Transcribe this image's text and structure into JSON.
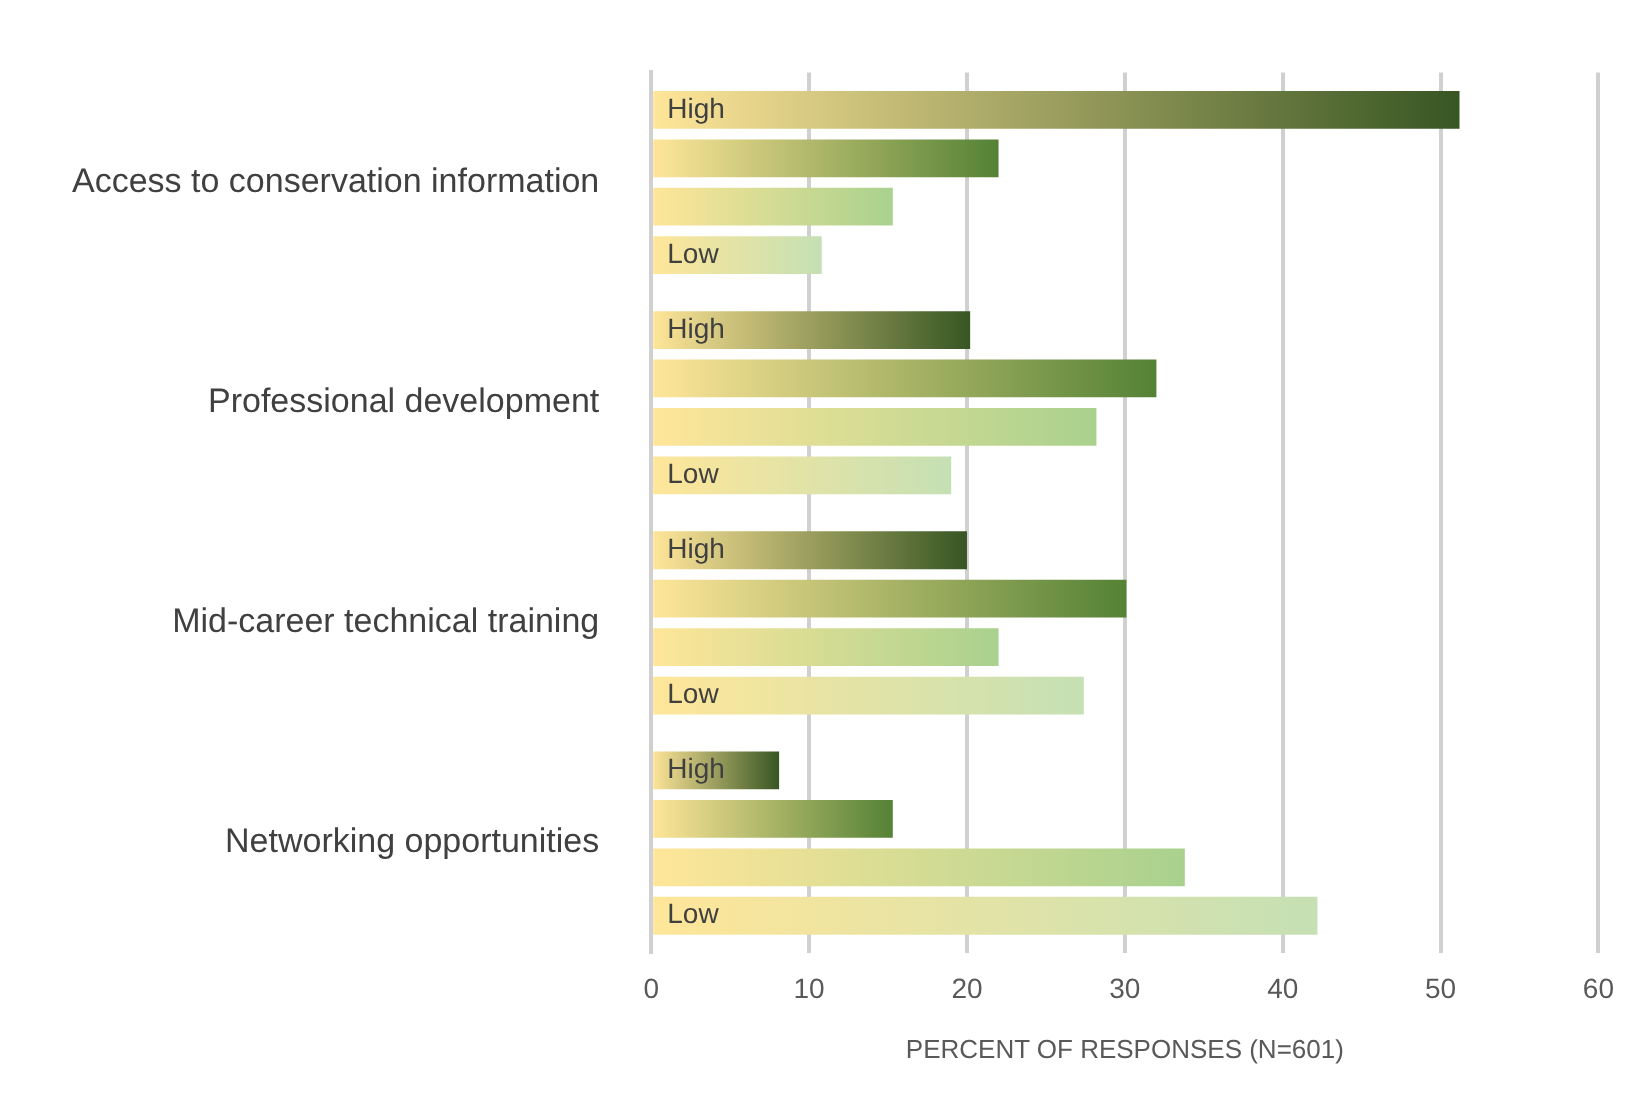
{
  "chart_data": {
    "type": "bar",
    "orientation": "horizontal",
    "xlabel": "PERCENT OF RESPONSES (N=601)",
    "categories": [
      "Access to conservation information",
      "Professional development",
      "Mid-career technical training",
      "Networking opportunities"
    ],
    "series": [
      {
        "name": "High",
        "color": "#375623",
        "values": [
          51.2,
          20.2,
          20.0,
          8.1
        ]
      },
      {
        "color": "#548235",
        "values": [
          22.0,
          32.0,
          30.1,
          15.3
        ]
      },
      {
        "color": "#a9d18e",
        "values": [
          15.3,
          28.2,
          22.0,
          33.8
        ]
      },
      {
        "name": "Low",
        "color": "#c5e0b4",
        "values": [
          10.8,
          19.0,
          27.4,
          42.2
        ]
      }
    ],
    "xlim": [
      0,
      60
    ],
    "xticks": [
      0,
      10,
      20,
      30,
      40,
      50,
      60
    ],
    "grid": "x",
    "legend": false
  }
}
